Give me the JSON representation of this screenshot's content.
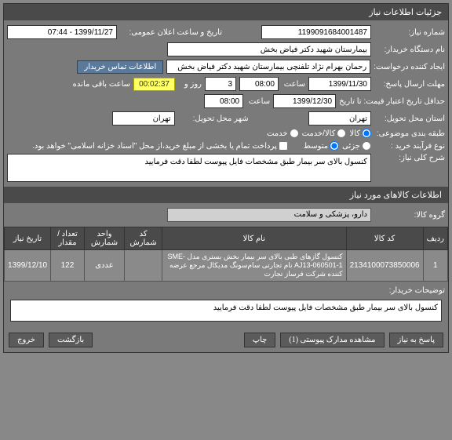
{
  "header": {
    "title": "جزئیات اطلاعات نیاز"
  },
  "fields": {
    "need_number_label": "شماره نیاز:",
    "need_number": "1199091684001487",
    "announce_dt_label": "تاریخ و ساعت اعلان عمومی:",
    "announce_dt": "1399/11/27 - 07:44",
    "buyer_org_label": "نام دستگاه خریدار:",
    "buyer_org": "بیمارستان شهید دکتر فیاض بخش",
    "creator_label": "ایجاد کننده درخواست:",
    "creator": "رحمان بهرام نژاد تلفنچی بیمارستان شهید دکتر فیاض بخش",
    "contact_link": "اطلاعات تماس خریدار",
    "reply_deadline_label": "مهلت ارسال پاسخ:",
    "reply_deadline_date": "1399/11/30",
    "time_label": "ساعت",
    "reply_deadline_time": "08:00",
    "countdown_days": "3",
    "countdown_days_label": "روز و",
    "countdown_time": "00:02:37",
    "countdown_suffix": "ساعت باقی مانده",
    "price_validity_label": "حداقل تاریخ اعتبار قیمت: تا تاریخ",
    "price_validity_date": "1399/12/30",
    "price_validity_time": "08:00",
    "delivery_province_label": "استان محل تحویل:",
    "delivery_province": "تهران",
    "delivery_city_label": "شهر محل تحویل:",
    "delivery_city": "تهران",
    "budget_label": "طبقه بندی موضوعی:",
    "budget_goods": "کالا",
    "budget_service": "کالا/خدمت",
    "budget_svc_only": "خدمت",
    "process_type_label": "نوع فرآیند خرید :",
    "process_small": "جزئی",
    "process_medium": "متوسط",
    "partial_pay_label": "پرداخت تمام یا بخشی از مبلغ خرید،از محل \"اسناد خزانه اسلامی\" خواهد بود.",
    "summary_label": "شرح کلی نیاز:",
    "summary_text": "کنسول بالای سر بیمار طبق مشخصات فایل پیوست لطفا دقت فرمایید"
  },
  "items_section": {
    "title": "اطلاعات کالاهای مورد نیاز",
    "group_label": "گروه کالا:",
    "group_value": "دارو، پزشکی و سلامت"
  },
  "table": {
    "headers": [
      "ردیف",
      "کد کالا",
      "نام کالا",
      "کد شمارش",
      "واحد شمارش",
      "تعداد / مقدار",
      "تاریخ نیاز"
    ],
    "rows": [
      [
        "1",
        "2134100073850006",
        "کنسول گازهای طبی بالای سر بیمار بخش بستری مدل SME-AJ13-060501-1 نام تجارتی سام‌سونگ مدیکال مرجع عرضه کننده شرکت فرساز تجارت",
        "",
        "عددی",
        "122",
        "1399/12/10"
      ]
    ]
  },
  "buyer_notes": {
    "label": "توضیحات خریدار:",
    "text": "کنسول بالای سر بیمار طبق مشخصات فایل پیوست لطفا دقت فرمایید"
  },
  "buttons": {
    "reply": "پاسخ به نیاز",
    "attachments": "مشاهده مدارک پیوستی (1)",
    "print": "چاپ",
    "back": "بازگشت",
    "exit": "خروج"
  }
}
